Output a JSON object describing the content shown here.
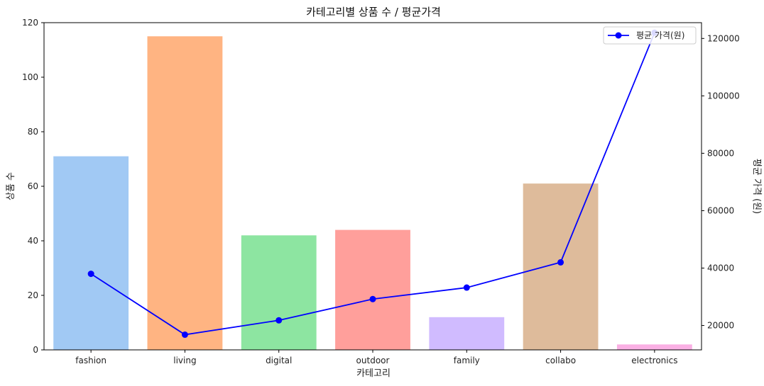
{
  "chart_data": {
    "type": "bar",
    "title": "카테고리별 상품 수 / 평균가격",
    "xlabel": "카테고리",
    "ylabel": "상품 수",
    "y2label": "평균 가격 (원)",
    "categories": [
      "fashion",
      "living",
      "digital",
      "outdoor",
      "family",
      "collabo",
      "electronics"
    ],
    "series": [
      {
        "kind": "bar",
        "axis": "left",
        "values": [
          71,
          115,
          42,
          44,
          12,
          61,
          2
        ],
        "colors": [
          "#a1c9f4",
          "#ffb482",
          "#8de5a1",
          "#ff9f9b",
          "#d0bbff",
          "#debb9b",
          "#fab0e4"
        ]
      },
      {
        "kind": "line",
        "axis": "right",
        "name": "평균 가격(원)",
        "color": "#0000ff",
        "values": [
          38000,
          16800,
          21800,
          29200,
          33200,
          42000,
          122000
        ]
      }
    ],
    "ylim": [
      0,
      120
    ],
    "yticks": [
      0,
      20,
      40,
      60,
      80,
      100,
      120
    ],
    "y2lim": [
      11500,
      125500
    ],
    "y2ticks": [
      20000,
      40000,
      60000,
      80000,
      100000,
      120000
    ],
    "grid": false,
    "legend_position": "top-right"
  }
}
